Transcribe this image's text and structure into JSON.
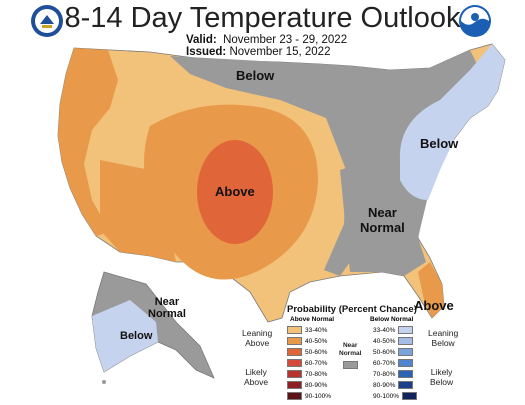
{
  "header": {
    "title": "8-14 Day Temperature Outlook",
    "valid_label": "Valid:",
    "valid_value": "November 23 - 29, 2022",
    "issued_label": "Issued:",
    "issued_value": "November 15, 2022"
  },
  "map_labels": {
    "below_north": "Below",
    "below_northeast": "Below",
    "above_center": "Above",
    "near_normal_southeast_1": "Near",
    "near_normal_southeast_2": "Normal",
    "above_florida": "Above",
    "alaska_near_1": "Near",
    "alaska_near_2": "Normal",
    "alaska_below": "Below"
  },
  "legend": {
    "title": "Probability (Percent Chance)",
    "above_heading": "Above Normal",
    "below_heading": "Below Normal",
    "near_heading_1": "Near",
    "near_heading_2": "Normal",
    "leaning_above_1": "Leaning",
    "leaning_above_2": "Above",
    "likely_above_1": "Likely",
    "likely_above_2": "Above",
    "leaning_below_1": "Leaning",
    "leaning_below_2": "Below",
    "likely_below_1": "Likely",
    "likely_below_2": "Below",
    "above_bins": [
      {
        "label": "33-40%",
        "color": "#f2c27a"
      },
      {
        "label": "40-50%",
        "color": "#e89a4a"
      },
      {
        "label": "50-60%",
        "color": "#e0663a"
      },
      {
        "label": "60-70%",
        "color": "#d44b3a"
      },
      {
        "label": "70-80%",
        "color": "#b8332c"
      },
      {
        "label": "80-90%",
        "color": "#8e1f24"
      },
      {
        "label": "90-100%",
        "color": "#5e1218"
      }
    ],
    "below_bins": [
      {
        "label": "33-40%",
        "color": "#c6d3ee"
      },
      {
        "label": "40-50%",
        "color": "#a5bde6"
      },
      {
        "label": "50-60%",
        "color": "#7aa5dc"
      },
      {
        "label": "60-70%",
        "color": "#4f86cf"
      },
      {
        "label": "70-80%",
        "color": "#2a62b5"
      },
      {
        "label": "80-90%",
        "color": "#1d3f8c"
      },
      {
        "label": "90-100%",
        "color": "#12245c"
      }
    ],
    "near_color": "#9a9a9a"
  },
  "colors": {
    "near_normal": "#9a9a9a",
    "above_33_40": "#f2c27a",
    "above_40_50": "#e89a4a",
    "above_50_60": "#e0663a",
    "below_33_40": "#c6d3ee"
  },
  "icons": [
    "commerce-seal-icon",
    "noaa-logo-icon"
  ]
}
